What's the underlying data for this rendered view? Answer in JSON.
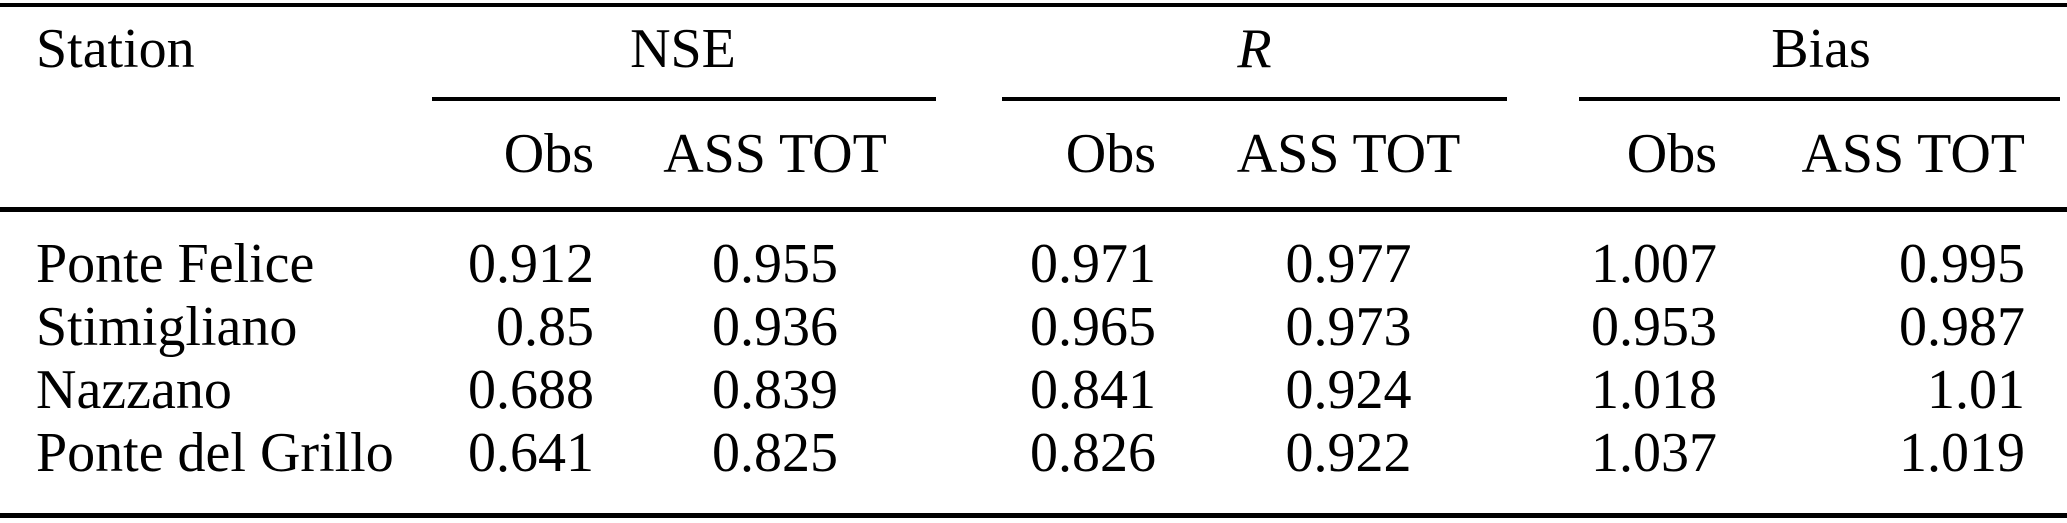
{
  "table": {
    "station_header": "Station",
    "groups": [
      {
        "label": "NSE",
        "sub": [
          "Obs",
          "ASS TOT"
        ]
      },
      {
        "label": "R",
        "sub": [
          "Obs",
          "ASS TOT"
        ]
      },
      {
        "label": "Bias",
        "sub": [
          "Obs",
          "ASS TOT"
        ]
      }
    ],
    "rows": [
      {
        "station": "Ponte Felice",
        "values": [
          "0.912",
          "0.955",
          "0.971",
          "0.977",
          "1.007",
          "0.995"
        ]
      },
      {
        "station": "Stimigliano",
        "values": [
          "0.85",
          "0.936",
          "0.965",
          "0.973",
          "0.953",
          "0.987"
        ]
      },
      {
        "station": "Nazzano",
        "values": [
          "0.688",
          "0.839",
          "0.841",
          "0.924",
          "1.018",
          "1.01"
        ]
      },
      {
        "station": "Ponte del Grillo",
        "values": [
          "0.641",
          "0.825",
          "0.826",
          "0.922",
          "1.037",
          "1.019"
        ]
      }
    ]
  },
  "colors": {
    "text": "#000000",
    "rule": "#000000",
    "background": "#ffffff"
  }
}
